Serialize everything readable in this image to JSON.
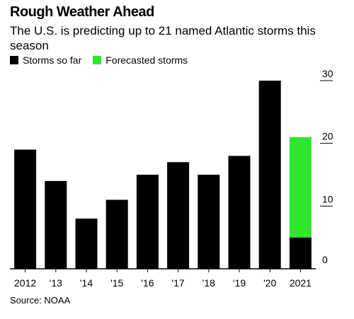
{
  "title": "Rough Weather Ahead",
  "subtitle": "The U.S. is predicting up to 21 named Atlantic storms this season",
  "source": "Source: NOAA",
  "legend": [
    {
      "label": "Storms so far",
      "color": "#000000"
    },
    {
      "label": "Forecasted storms",
      "color": "#2ee62e"
    }
  ],
  "chart_data": {
    "type": "bar",
    "stacked": true,
    "categories": [
      "2012",
      "'13",
      "'14",
      "'15",
      "'16",
      "'17",
      "'18",
      "'19",
      "'20",
      "2021"
    ],
    "series": [
      {
        "name": "Storms so far",
        "color": "#000000",
        "values": [
          19,
          14,
          8,
          11,
          15,
          17,
          15,
          18,
          30,
          5
        ]
      },
      {
        "name": "Forecasted storms",
        "color": "#2ee62e",
        "values": [
          0,
          0,
          0,
          0,
          0,
          0,
          0,
          0,
          0,
          16
        ]
      }
    ],
    "ylim": [
      0,
      30
    ],
    "yticks": [
      0,
      10,
      20,
      30
    ],
    "yaxis_position": "right",
    "grid": false
  }
}
